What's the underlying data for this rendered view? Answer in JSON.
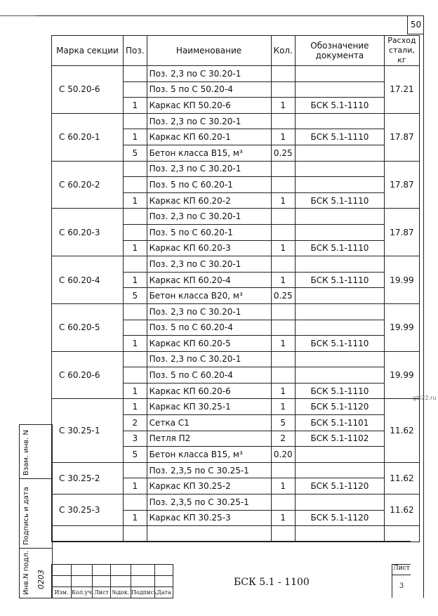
{
  "page_number": "50",
  "watermark": "gbi22.ru",
  "headers": [
    "Марка секции",
    "Поз.",
    "Наименование",
    "Кол.",
    "Обозначение документа",
    "Расход стали, кг"
  ],
  "sections": [
    {
      "mark": "С 50.20-6",
      "steel": "17.21",
      "rows": [
        [
          "",
          "Поз. 2,3 по С 30.20-1",
          "",
          ""
        ],
        [
          "",
          "Поз. 5 по С 50.20-4",
          "",
          ""
        ],
        [
          "1",
          "Каркас КП 50.20-6",
          "1",
          "БСК 5.1-1110"
        ]
      ]
    },
    {
      "mark": "С 60.20-1",
      "steel": "17.87",
      "rows": [
        [
          "",
          "Поз. 2,3 по С 30.20-1",
          "",
          ""
        ],
        [
          "1",
          "Каркас КП 60.20-1",
          "1",
          "БСК 5.1-1110"
        ],
        [
          "5",
          "Бетон класса В15, м³",
          "0.25",
          ""
        ]
      ]
    },
    {
      "mark": "С 60.20-2",
      "steel": "17.87",
      "rows": [
        [
          "",
          "Поз. 2,3 по С 30.20-1",
          "",
          ""
        ],
        [
          "",
          "Поз. 5 по С 60.20-1",
          "",
          ""
        ],
        [
          "1",
          "Каркас КП 60.20-2",
          "1",
          "БСК 5.1-1110"
        ]
      ]
    },
    {
      "mark": "С 60.20-3",
      "steel": "17.87",
      "rows": [
        [
          "",
          "Поз. 2,3 по С 30.20-1",
          "",
          ""
        ],
        [
          "",
          "Поз. 5 по С 60.20-1",
          "",
          ""
        ],
        [
          "1",
          "Каркас КП 60.20-3",
          "1",
          "БСК 5.1-1110"
        ]
      ]
    },
    {
      "mark": "С 60.20-4",
      "steel": "19.99",
      "rows": [
        [
          "",
          "Поз. 2,3 по С 30.20-1",
          "",
          ""
        ],
        [
          "1",
          "Каркас КП 60.20-4",
          "1",
          "БСК 5.1-1110"
        ],
        [
          "5",
          "Бетон класса В20, м³",
          "0.25",
          ""
        ]
      ]
    },
    {
      "mark": "С 60.20-5",
      "steel": "19.99",
      "rows": [
        [
          "",
          "Поз. 2,3 по С 30.20-1",
          "",
          ""
        ],
        [
          "",
          "Поз. 5 по С 60.20-4",
          "",
          ""
        ],
        [
          "1",
          "Каркас КП 60.20-5",
          "1",
          "БСК 5.1-1110"
        ]
      ]
    },
    {
      "mark": "С 60.20-6",
      "steel": "19.99",
      "rows": [
        [
          "",
          "Поз. 2,3 по С 30.20-1",
          "",
          ""
        ],
        [
          "",
          "Поз. 5 по С 60.20-4",
          "",
          ""
        ],
        [
          "1",
          "Каркас КП 60.20-6",
          "1",
          "БСК 5.1-1110"
        ]
      ]
    },
    {
      "mark": "С 30.25-1",
      "steel": "11.62",
      "rows": [
        [
          "1",
          "Каркас КП 30.25-1",
          "1",
          "БСК 5.1-1120"
        ],
        [
          "2",
          "Сетка  С1",
          "5",
          "БСК 5.1-1101"
        ],
        [
          "3",
          "Петля  П2",
          "2",
          "БСК 5.1-1102"
        ],
        [
          "5",
          "Бетон класса В15, м³",
          "0.20",
          ""
        ]
      ]
    },
    {
      "mark": "С 30.25-2",
      "steel": "11.62",
      "rows": [
        [
          "",
          "Поз. 2,3,5 по С 30.25-1",
          "",
          ""
        ],
        [
          "1",
          "Каркас КП 30.25-2",
          "1",
          "БСК 5.1-1120"
        ]
      ]
    },
    {
      "mark": "С 30.25-3",
      "steel": "11.62",
      "rows": [
        [
          "",
          "Поз. 2,3,5 по С 30.25-1",
          "",
          ""
        ],
        [
          "1",
          "Каркас КП 30.25-3",
          "1",
          "БСК 5.1-1120"
        ]
      ]
    }
  ],
  "side_stamp": {
    "replace_inv": "Взам. инв. N",
    "sign_date": "Подпись и дата",
    "inv_orig": "Инв.N подл.",
    "inv_number": "0203"
  },
  "stamp": {
    "cols": [
      "Изм.",
      "Кол.уч.",
      "Лист",
      "№док.",
      "Подпись",
      "Дата"
    ],
    "code": "БСК 5.1 - 1100",
    "sheet_label": "Лист",
    "sheet": "3"
  }
}
